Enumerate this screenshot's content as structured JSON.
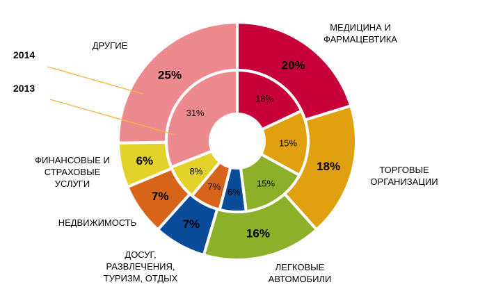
{
  "chart_data": {
    "type": "pie",
    "subtype": "donut",
    "series": [
      {
        "name": "2014",
        "values": [
          20,
          18,
          16,
          7,
          7,
          6,
          25
        ],
        "value_labels": [
          "20%",
          "18%",
          "16%",
          "7%",
          "7%",
          "6%",
          "25%"
        ]
      },
      {
        "name": "2013",
        "values": [
          18,
          15,
          15,
          6,
          7,
          8,
          31
        ],
        "value_labels": [
          "18%",
          "15%",
          "15%",
          "6%",
          "7%",
          "8%",
          "31%"
        ]
      }
    ],
    "categories": [
      {
        "label_lines": [
          "МЕДИЦИНА И",
          "ФАРМАЦЕВТИКА"
        ],
        "color": "#C8003A"
      },
      {
        "label_lines": [
          "ТОРГОВЫЕ",
          "ОРГАНИЗАЦИИ"
        ],
        "color": "#E0A010"
      },
      {
        "label_lines": [
          "ЛЕГКОВЫЕ",
          "АВТОМОБИЛИ"
        ],
        "color": "#8CB02A"
      },
      {
        "label_lines": [
          "ДОСУГ,",
          "РАЗВЛЕЧЕНИЯ,",
          "ТУРИЗМ, ОТДЫХ"
        ],
        "color": "#0B4C9A"
      },
      {
        "label_lines": [
          "НЕДВИЖИМОСТЬ"
        ],
        "color": "#D8641A"
      },
      {
        "label_lines": [
          "ФИНАНСОВЫЕ И",
          "СТРАХОВЫЕ",
          "УСЛУГИ"
        ],
        "color": "#E2D22A"
      },
      {
        "label_lines": [
          "ДРУГИЕ"
        ],
        "color": "#EC8A90"
      }
    ],
    "legend": "annotation lines pointing to outer and inner rings"
  }
}
